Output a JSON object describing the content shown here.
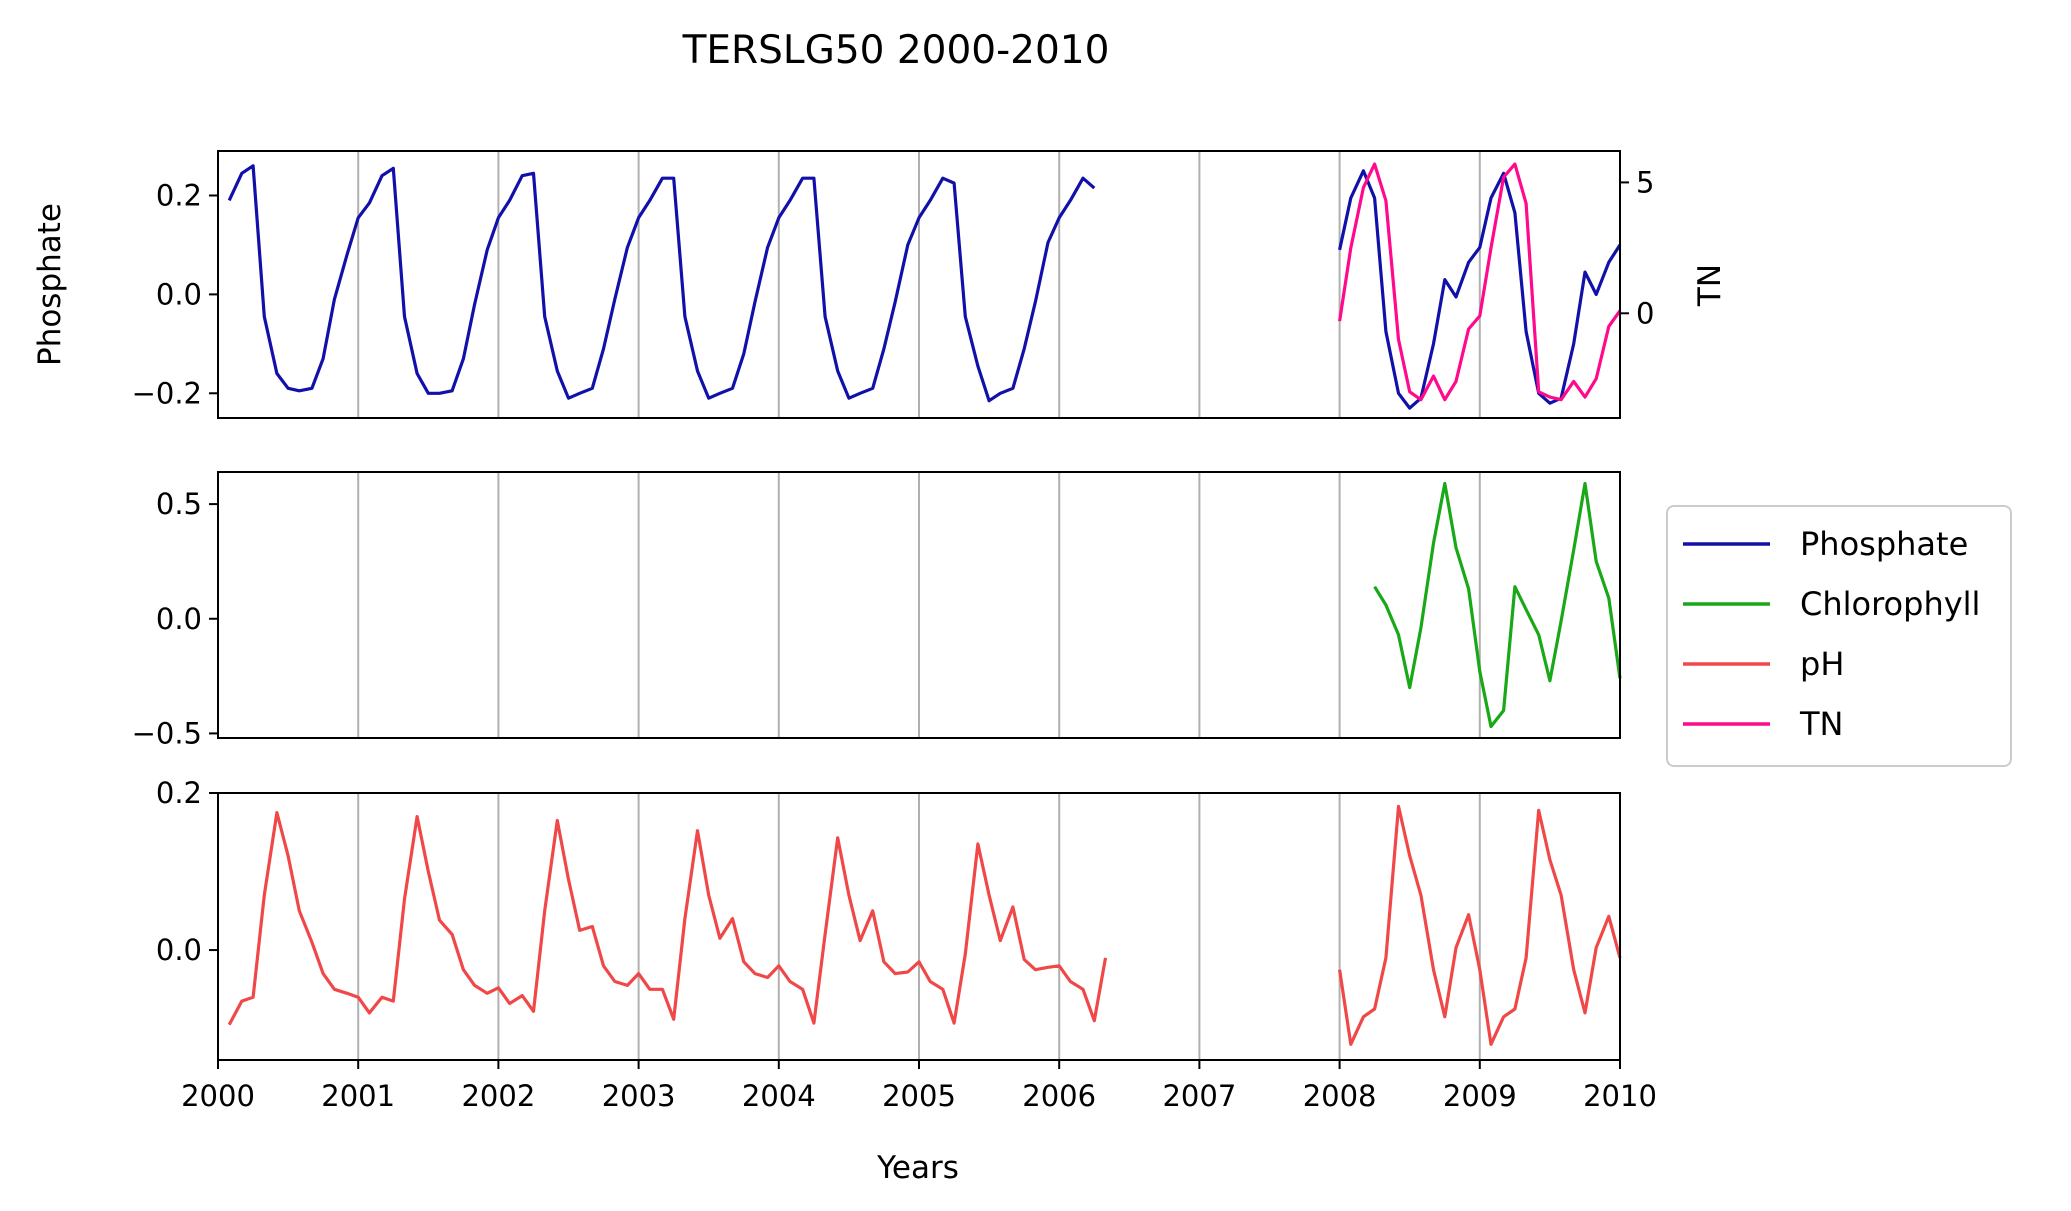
{
  "chart_data": {
    "title": "TERSLG50 2000-2010",
    "type": "line",
    "xlabel": "Years",
    "xlim": [
      2000,
      2010
    ],
    "xticks": [
      "2000",
      "2001",
      "2002",
      "2003",
      "2004",
      "2005",
      "2006",
      "2007",
      "2008",
      "2009",
      "2010"
    ],
    "grid": "vertical lines at each year",
    "legend": {
      "placement": "right of middle panel",
      "entries": [
        {
          "label": "Phosphate",
          "color": "#1111aa"
        },
        {
          "label": "Chlorophyll",
          "color": "#18a818"
        },
        {
          "label": "pH",
          "color": "#f04848"
        },
        {
          "label": "TN",
          "color": "#ff0a8c"
        }
      ]
    },
    "panels": [
      {
        "name": "top",
        "ylabel": "Phosphate",
        "ylim": [
          -0.25,
          0.29
        ],
        "yticks": [
          {
            "v": -0.2,
            "label": "−0.2"
          },
          {
            "v": 0.0,
            "label": "0.0"
          },
          {
            "v": 0.2,
            "label": "0.2"
          }
        ],
        "secondary_axis": {
          "ylabel": "TN",
          "ylim": [
            -4.0,
            6.2
          ],
          "yticks": [
            {
              "v": 0,
              "label": "0"
            },
            {
              "v": 5,
              "label": "5"
            }
          ]
        },
        "series": [
          {
            "name": "Phosphate",
            "color": "#1111aa",
            "axis": "left",
            "x": [
              2000.08,
              2000.17,
              2000.25,
              2000.33,
              2000.42,
              2000.5,
              2000.58,
              2000.67,
              2000.75,
              2000.83,
              2000.92,
              2001.0,
              2001.08,
              2001.17,
              2001.25,
              2001.33,
              2001.42,
              2001.5,
              2001.58,
              2001.67,
              2001.75,
              2001.83,
              2001.92,
              2002.0,
              2002.08,
              2002.17,
              2002.25,
              2002.33,
              2002.42,
              2002.5,
              2002.58,
              2002.67,
              2002.75,
              2002.83,
              2002.92,
              2003.0,
              2003.08,
              2003.17,
              2003.25,
              2003.33,
              2003.42,
              2003.5,
              2003.58,
              2003.67,
              2003.75,
              2003.83,
              2003.92,
              2004.0,
              2004.08,
              2004.17,
              2004.25,
              2004.33,
              2004.42,
              2004.5,
              2004.58,
              2004.67,
              2004.75,
              2004.83,
              2004.92,
              2005.0,
              2005.08,
              2005.17,
              2005.25,
              2005.33,
              2005.42,
              2005.5,
              2005.58,
              2005.67,
              2005.75,
              2005.83,
              2005.92,
              2006.0,
              2006.08,
              2006.17,
              2006.25,
              null,
              2008.0,
              2008.08,
              2008.17,
              2008.25,
              2008.33,
              2008.42,
              2008.5,
              2008.58,
              2008.67,
              2008.75,
              2008.83,
              2008.92,
              2009.0,
              2009.08,
              2009.17,
              2009.25,
              2009.33,
              2009.42,
              2009.5,
              2009.58,
              2009.67,
              2009.75,
              2009.83,
              2009.92,
              2010.0
            ],
            "y": [
              0.19,
              0.245,
              0.26,
              -0.045,
              -0.16,
              -0.19,
              -0.195,
              -0.19,
              -0.13,
              -0.01,
              0.08,
              0.155,
              0.185,
              0.24,
              0.255,
              -0.045,
              -0.16,
              -0.2,
              -0.2,
              -0.195,
              -0.13,
              -0.02,
              0.09,
              0.155,
              0.19,
              0.24,
              0.245,
              -0.045,
              -0.155,
              -0.21,
              -0.2,
              -0.19,
              -0.11,
              -0.01,
              0.095,
              0.155,
              0.19,
              0.235,
              0.235,
              -0.045,
              -0.155,
              -0.21,
              -0.2,
              -0.19,
              -0.12,
              -0.015,
              0.095,
              0.155,
              0.19,
              0.235,
              0.235,
              -0.045,
              -0.155,
              -0.21,
              -0.2,
              -0.19,
              -0.11,
              -0.015,
              0.1,
              0.155,
              0.19,
              0.235,
              0.225,
              -0.045,
              -0.145,
              -0.215,
              -0.2,
              -0.19,
              -0.11,
              -0.015,
              0.105,
              0.155,
              0.19,
              0.235,
              0.215,
              null,
              0.09,
              0.195,
              0.25,
              0.195,
              -0.075,
              -0.2,
              -0.23,
              -0.21,
              -0.1,
              0.03,
              -0.005,
              0.065,
              0.095,
              0.195,
              0.245,
              0.165,
              -0.075,
              -0.2,
              -0.22,
              -0.21,
              -0.1,
              0.045,
              0.0,
              0.065,
              0.1
            ]
          },
          {
            "name": "TN",
            "color": "#ff0a8c",
            "axis": "right",
            "x": [
              2008.0,
              2008.08,
              2008.17,
              2008.25,
              2008.33,
              2008.42,
              2008.5,
              2008.58,
              2008.67,
              2008.75,
              2008.83,
              2008.92,
              2009.0,
              2009.08,
              2009.17,
              2009.25,
              2009.33,
              2009.42,
              2009.5,
              2009.58,
              2009.67,
              2009.75,
              2009.83,
              2009.92,
              2010.0
            ],
            "y": [
              -0.3,
              2.5,
              4.8,
              5.7,
              4.3,
              -1.0,
              -3.0,
              -3.3,
              -2.4,
              -3.3,
              -2.6,
              -0.6,
              -0.1,
              2.5,
              5.2,
              5.7,
              4.2,
              -3.0,
              -3.2,
              -3.3,
              -2.6,
              -3.2,
              -2.5,
              -0.5,
              0.1
            ]
          }
        ]
      },
      {
        "name": "middle",
        "ylabel": "",
        "ylim": [
          -0.52,
          0.64
        ],
        "yticks": [
          {
            "v": -0.5,
            "label": "−0.5"
          },
          {
            "v": 0.0,
            "label": "0.0"
          },
          {
            "v": 0.5,
            "label": "0.5"
          }
        ],
        "series": [
          {
            "name": "Chlorophyll",
            "color": "#18a818",
            "axis": "left",
            "x": [
              2008.25,
              2008.33,
              2008.42,
              2008.5,
              2008.58,
              2008.67,
              2008.75,
              2008.83,
              2008.92,
              2009.0,
              2009.08,
              2009.17,
              2009.25,
              2009.33,
              2009.42,
              2009.5,
              2009.58,
              2009.67,
              2009.75,
              2009.83,
              2009.92,
              2010.0
            ],
            "y": [
              0.14,
              0.06,
              -0.07,
              -0.3,
              -0.04,
              0.33,
              0.59,
              0.31,
              0.13,
              -0.23,
              -0.47,
              -0.4,
              0.14,
              0.04,
              -0.07,
              -0.27,
              -0.01,
              0.3,
              0.59,
              0.25,
              0.09,
              -0.26
            ]
          }
        ]
      },
      {
        "name": "bottom",
        "ylabel": "",
        "ylim": [
          -0.14,
          0.2
        ],
        "yticks": [
          {
            "v": 0.0,
            "label": "0.0"
          },
          {
            "v": 0.2,
            "label": "0.2"
          }
        ],
        "series": [
          {
            "name": "pH",
            "color": "#f04848",
            "axis": "left",
            "x": [
              2000.08,
              2000.17,
              2000.25,
              2000.33,
              2000.42,
              2000.5,
              2000.58,
              2000.67,
              2000.75,
              2000.83,
              2000.92,
              2001.0,
              2001.08,
              2001.17,
              2001.25,
              2001.33,
              2001.42,
              2001.5,
              2001.58,
              2001.67,
              2001.75,
              2001.83,
              2001.92,
              2002.0,
              2002.08,
              2002.17,
              2002.25,
              2002.33,
              2002.42,
              2002.5,
              2002.58,
              2002.67,
              2002.75,
              2002.83,
              2002.92,
              2003.0,
              2003.08,
              2003.17,
              2003.25,
              2003.33,
              2003.42,
              2003.5,
              2003.58,
              2003.67,
              2003.75,
              2003.83,
              2003.92,
              2004.0,
              2004.08,
              2004.17,
              2004.25,
              2004.33,
              2004.42,
              2004.5,
              2004.58,
              2004.67,
              2004.75,
              2004.83,
              2004.92,
              2005.0,
              2005.08,
              2005.17,
              2005.25,
              2005.33,
              2005.42,
              2005.5,
              2005.58,
              2005.67,
              2005.75,
              2005.83,
              2005.92,
              2006.0,
              2006.08,
              2006.17,
              2006.25,
              2006.33,
              null,
              2008.0,
              2008.08,
              2008.17,
              2008.25,
              2008.33,
              2008.42,
              2008.5,
              2008.58,
              2008.67,
              2008.75,
              2008.83,
              2008.92,
              2009.0,
              2009.08,
              2009.17,
              2009.25,
              2009.33,
              2009.42,
              2009.5,
              2009.58,
              2009.67,
              2009.75,
              2009.83,
              2009.92,
              2010.0
            ],
            "y": [
              -0.095,
              -0.065,
              -0.06,
              0.07,
              0.175,
              0.12,
              0.05,
              0.01,
              -0.03,
              -0.05,
              -0.055,
              -0.06,
              -0.08,
              -0.06,
              -0.065,
              0.065,
              0.17,
              0.1,
              0.038,
              0.02,
              -0.025,
              -0.045,
              -0.055,
              -0.048,
              -0.068,
              -0.058,
              -0.078,
              0.05,
              0.165,
              0.09,
              0.025,
              0.03,
              -0.02,
              -0.04,
              -0.045,
              -0.03,
              -0.05,
              -0.05,
              -0.088,
              0.04,
              0.152,
              0.07,
              0.015,
              0.04,
              -0.015,
              -0.03,
              -0.035,
              -0.02,
              -0.04,
              -0.05,
              -0.093,
              0.02,
              0.143,
              0.07,
              0.012,
              0.05,
              -0.015,
              -0.03,
              -0.028,
              -0.015,
              -0.04,
              -0.05,
              -0.093,
              -0.005,
              0.135,
              0.07,
              0.012,
              0.055,
              -0.012,
              -0.025,
              -0.022,
              -0.02,
              -0.04,
              -0.05,
              -0.09,
              -0.01,
              null,
              -0.025,
              -0.12,
              -0.085,
              -0.075,
              -0.01,
              0.183,
              0.12,
              0.07,
              -0.025,
              -0.085,
              0.003,
              0.045,
              -0.025,
              -0.12,
              -0.085,
              -0.075,
              -0.01,
              0.178,
              0.115,
              0.07,
              -0.025,
              -0.08,
              0.003,
              0.043,
              -0.01
            ]
          }
        ]
      }
    ]
  }
}
